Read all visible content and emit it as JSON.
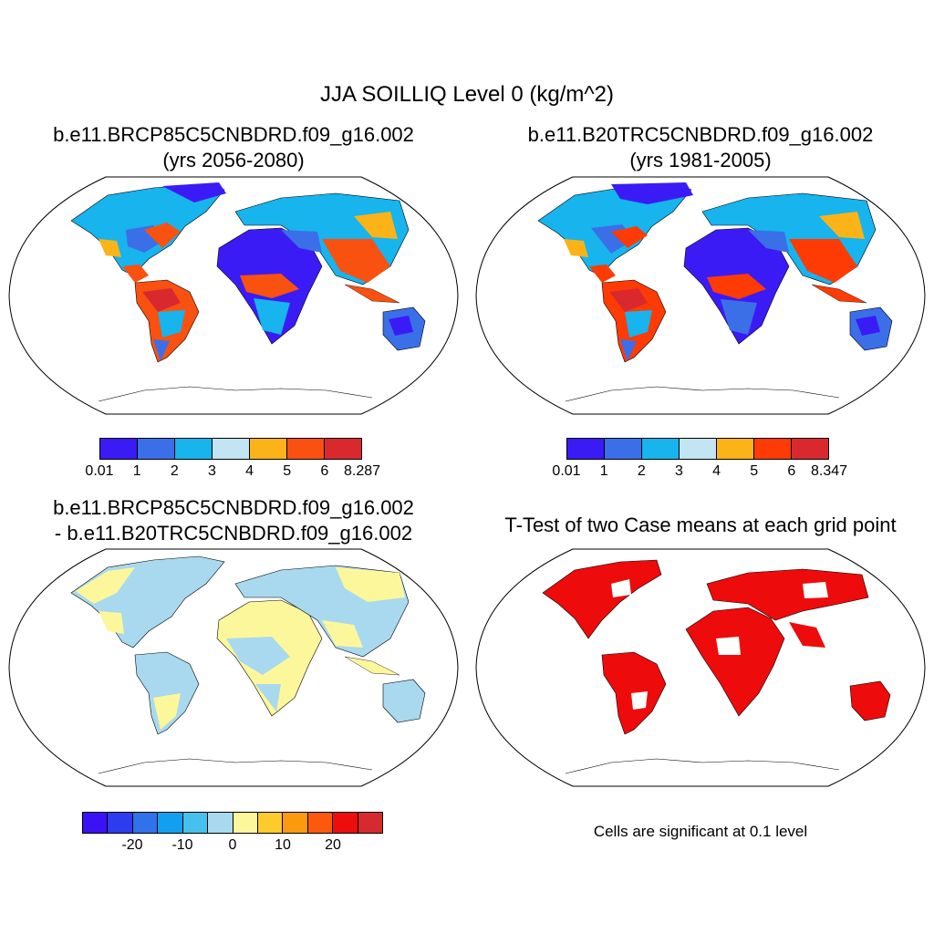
{
  "figure": {
    "main_title": "JJA SOILLIQ Level 0 (kg/m^2)"
  },
  "panels": [
    {
      "id": "future",
      "title_line1": "b.e11.BRCP85C5CNBDRD.f09_g16.002",
      "title_line2": "(yrs 2056-2080)",
      "colorbar": {
        "colors": [
          "#3b1bf5",
          "#3a6fe8",
          "#17b4ee",
          "#c3e4f2",
          "#fbb317",
          "#f9510f",
          "#d9292e"
        ],
        "labels": [
          "0.01",
          "1",
          "2",
          "3",
          "4",
          "5",
          "6",
          "8.287"
        ]
      }
    },
    {
      "id": "historical",
      "title_line1": "b.e11.B20TRC5CNBDRD.f09_g16.002",
      "title_line2": "(yrs 1981-2005)",
      "colorbar": {
        "colors": [
          "#3b1bf5",
          "#3a6fe8",
          "#17b4ee",
          "#c3e4f2",
          "#fbb317",
          "#fe3b05",
          "#d9292e"
        ],
        "labels": [
          "0.01",
          "1",
          "2",
          "3",
          "4",
          "5",
          "6",
          "8.347"
        ]
      }
    },
    {
      "id": "difference",
      "title_line1": "b.e11.BRCP85C5CNBDRD.f09_g16.002",
      "title_line2": "- b.e11.B20TRC5CNBDRD.f09_g16.002",
      "colorbar": {
        "colors": [
          "#3b12f5",
          "#2e3cf0",
          "#2f72ea",
          "#139ff0",
          "#45c0ef",
          "#a9d9ee",
          "#fdf79c",
          "#fdcb2c",
          "#fb9a0d",
          "#fb5a0e",
          "#ef0c0d",
          "#d52b2f"
        ],
        "labels": [
          "-20",
          "-10",
          "0",
          "10",
          "20"
        ]
      }
    },
    {
      "id": "ttest",
      "title_line1": "T-Test of two Case means at each grid point",
      "significance_note": "Cells are significant at 0.1 level",
      "significant_color": "#ee0b0b"
    }
  ]
}
